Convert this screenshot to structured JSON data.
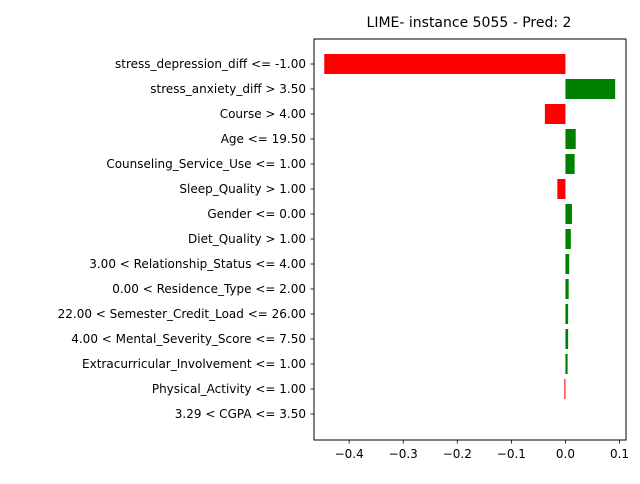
{
  "chart_data": {
    "type": "bar",
    "orientation": "horizontal",
    "title": "LIME- instance 5055 - Pred: 2",
    "xlabel": "",
    "ylabel": "",
    "xlim": [
      -0.465,
      0.112
    ],
    "x_ticks": [
      -0.4,
      -0.3,
      -0.2,
      -0.1,
      0.0,
      0.1
    ],
    "x_tick_labels": [
      "−0.4",
      "−0.3",
      "−0.2",
      "−0.1",
      "0.0",
      "0.1"
    ],
    "grid": false,
    "legend": "none",
    "colors": {
      "positive": "#008000",
      "negative": "#ff0000"
    },
    "categories": [
      "stress_depression_diff <= -1.00",
      "stress_anxiety_diff > 3.50",
      "Course > 4.00",
      "Age <= 19.50",
      "Counseling_Service_Use <= 1.00",
      "Sleep_Quality > 1.00",
      "Gender <= 0.00",
      "Diet_Quality > 1.00",
      "3.00 < Relationship_Status <= 4.00",
      "0.00 < Residence_Type <= 2.00",
      "22.00 < Semester_Credit_Load <= 26.00",
      "4.00 < Mental_Severity_Score <= 7.50",
      "Extracurricular_Involvement <= 1.00",
      "Physical_Activity <= 1.00",
      "3.29 < CGPA <= 3.50"
    ],
    "values": [
      -0.446,
      0.092,
      -0.038,
      0.019,
      0.017,
      -0.015,
      0.012,
      0.01,
      0.007,
      0.006,
      0.005,
      0.005,
      0.004,
      -0.002,
      0.0
    ]
  }
}
